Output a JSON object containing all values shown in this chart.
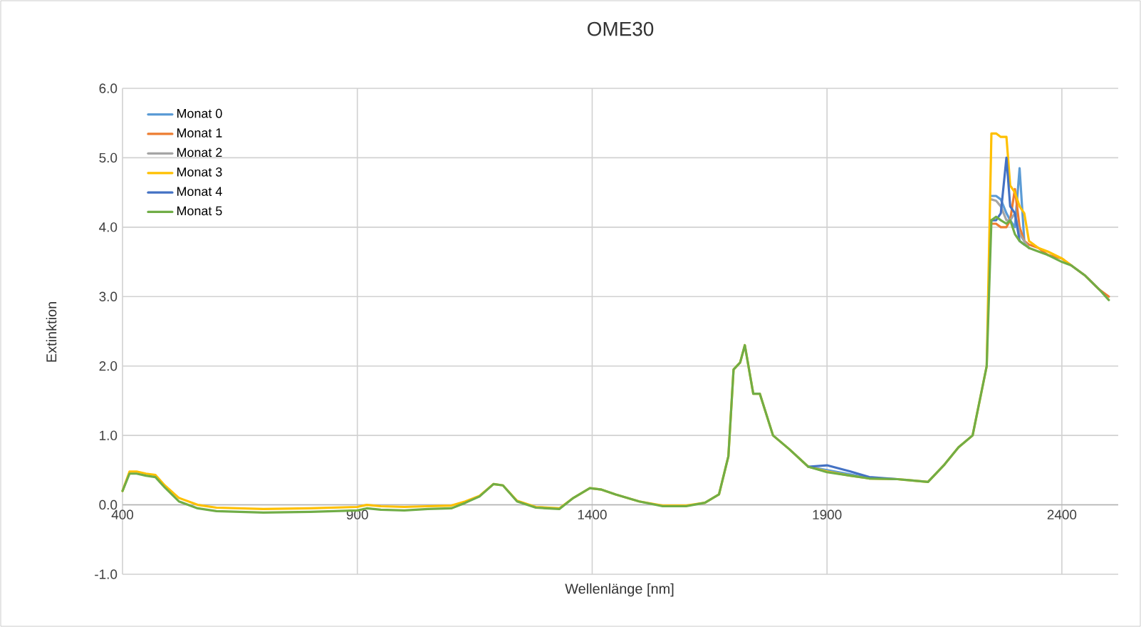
{
  "chart_data": {
    "type": "line",
    "title": "OME30",
    "xlabel": "Wellenlänge [nm]",
    "ylabel": "Extinktion",
    "x": [
      400,
      415,
      430,
      450,
      470,
      490,
      520,
      560,
      600,
      700,
      800,
      900,
      920,
      950,
      1000,
      1050,
      1100,
      1130,
      1160,
      1190,
      1210,
      1240,
      1280,
      1330,
      1360,
      1395,
      1420,
      1450,
      1500,
      1550,
      1600,
      1640,
      1670,
      1690,
      1701,
      1715,
      1725,
      1743,
      1757,
      1785,
      1820,
      1860,
      1900,
      1950,
      1990,
      2050,
      2115,
      2150,
      2180,
      2210,
      2240,
      2250,
      2260,
      2270,
      2282,
      2290,
      2300,
      2310,
      2320,
      2330,
      2350,
      2370,
      2400,
      2420,
      2450,
      2480,
      2500
    ],
    "series": [
      {
        "name": "Monat 0",
        "color": "#5b9bd5",
        "values": [
          null,
          null,
          null,
          null,
          null,
          null,
          null,
          null,
          null,
          null,
          null,
          null,
          null,
          null,
          null,
          null,
          null,
          null,
          null,
          null,
          null,
          null,
          null,
          null,
          null,
          null,
          null,
          null,
          null,
          null,
          null,
          null,
          null,
          null,
          null,
          null,
          null,
          null,
          null,
          null,
          null,
          0.55,
          0.5,
          0.44,
          0.38,
          null,
          null,
          null,
          null,
          null,
          null,
          4.45,
          4.45,
          4.4,
          4.2,
          4.1,
          4.0,
          4.85,
          3.8,
          3.7,
          null,
          null,
          null,
          null,
          null,
          null,
          null
        ]
      },
      {
        "name": "Monat 1",
        "color": "#ed7d31",
        "values": [
          null,
          null,
          null,
          null,
          null,
          null,
          null,
          null,
          null,
          null,
          null,
          null,
          null,
          null,
          null,
          null,
          null,
          null,
          null,
          null,
          null,
          null,
          null,
          null,
          null,
          null,
          null,
          null,
          null,
          null,
          null,
          null,
          null,
          null,
          null,
          null,
          null,
          null,
          null,
          null,
          null,
          null,
          null,
          null,
          null,
          null,
          null,
          null,
          null,
          null,
          null,
          4.05,
          4.05,
          4.0,
          4.0,
          4.1,
          4.55,
          4.0,
          3.8,
          3.75,
          3.7,
          3.6,
          3.55,
          3.45,
          3.3,
          3.1,
          3.0
        ]
      },
      {
        "name": "Monat 2",
        "color": "#a5a5a5",
        "values": [
          null,
          null,
          null,
          null,
          null,
          null,
          null,
          null,
          null,
          null,
          null,
          null,
          null,
          null,
          null,
          null,
          null,
          null,
          null,
          null,
          null,
          null,
          null,
          null,
          null,
          null,
          null,
          null,
          null,
          null,
          null,
          null,
          null,
          null,
          null,
          null,
          null,
          null,
          null,
          null,
          null,
          null,
          null,
          null,
          null,
          null,
          null,
          null,
          null,
          null,
          null,
          4.4,
          4.38,
          4.3,
          4.1,
          4.1,
          4.2,
          3.9,
          3.8,
          3.7,
          null,
          null,
          null,
          null,
          null,
          null,
          null
        ]
      },
      {
        "name": "Monat 3",
        "color": "#ffc000",
        "values": [
          0.2,
          0.48,
          0.48,
          0.45,
          0.43,
          0.28,
          0.1,
          0.0,
          -0.04,
          -0.06,
          -0.05,
          -0.03,
          0.0,
          -0.02,
          -0.03,
          -0.02,
          -0.01,
          0.05,
          0.13,
          0.3,
          0.28,
          0.06,
          -0.03,
          -0.05,
          0.1,
          0.24,
          0.22,
          0.15,
          0.05,
          -0.01,
          -0.01,
          0.03,
          0.15,
          0.7,
          1.95,
          2.05,
          2.3,
          1.6,
          1.6,
          1.0,
          0.8,
          0.55,
          0.48,
          0.42,
          0.38,
          0.37,
          0.33,
          0.58,
          0.83,
          1.0,
          2.0,
          5.35,
          5.35,
          5.3,
          5.3,
          4.6,
          4.5,
          4.3,
          4.2,
          3.8,
          3.7,
          3.65,
          3.55,
          3.45,
          null,
          null,
          null
        ]
      },
      {
        "name": "Monat 4",
        "color": "#4472c4",
        "values": [
          null,
          null,
          null,
          null,
          null,
          null,
          null,
          null,
          null,
          null,
          null,
          null,
          null,
          null,
          null,
          null,
          null,
          null,
          null,
          null,
          null,
          null,
          null,
          null,
          null,
          null,
          null,
          null,
          null,
          null,
          null,
          null,
          null,
          null,
          null,
          null,
          null,
          null,
          null,
          null,
          null,
          0.55,
          0.57,
          0.48,
          0.4,
          0.37,
          null,
          null,
          null,
          null,
          null,
          4.1,
          4.1,
          4.2,
          5.0,
          4.3,
          4.2,
          3.8,
          3.75,
          null,
          null,
          null,
          null,
          null,
          null,
          null,
          null
        ]
      },
      {
        "name": "Monat 5",
        "color": "#70ad47",
        "values": [
          0.2,
          0.45,
          0.45,
          0.42,
          0.4,
          0.25,
          0.05,
          -0.05,
          -0.09,
          -0.11,
          -0.1,
          -0.08,
          -0.05,
          -0.07,
          -0.08,
          -0.06,
          -0.05,
          0.03,
          0.12,
          0.3,
          0.28,
          0.05,
          -0.04,
          -0.06,
          0.1,
          0.24,
          0.22,
          0.15,
          0.05,
          -0.02,
          -0.02,
          0.03,
          0.15,
          0.7,
          1.95,
          2.05,
          2.3,
          1.6,
          1.6,
          1.0,
          0.8,
          0.55,
          0.47,
          0.42,
          0.38,
          0.37,
          0.33,
          0.58,
          0.83,
          1.0,
          2.0,
          4.1,
          4.15,
          4.1,
          4.05,
          4.1,
          3.9,
          3.8,
          3.75,
          3.7,
          3.65,
          3.6,
          3.5,
          3.45,
          3.3,
          3.1,
          2.95
        ]
      }
    ],
    "xlim": [
      400,
      2520
    ],
    "ylim": [
      -1,
      6
    ],
    "xticks": [
      400,
      900,
      1400,
      1900,
      2400
    ],
    "yticks": [
      {
        "value": -1,
        "label": "-1.0"
      },
      {
        "value": 0,
        "label": "0.0"
      },
      {
        "value": 1,
        "label": "1.0"
      },
      {
        "value": 2,
        "label": "2.0"
      },
      {
        "value": 3,
        "label": "3.0"
      },
      {
        "value": 4,
        "label": "4.0"
      },
      {
        "value": 5,
        "label": "5.0"
      },
      {
        "value": 6,
        "label": "6.0"
      }
    ],
    "grid": true,
    "legend": "top left",
    "marker": "none",
    "line_style": "solid"
  }
}
